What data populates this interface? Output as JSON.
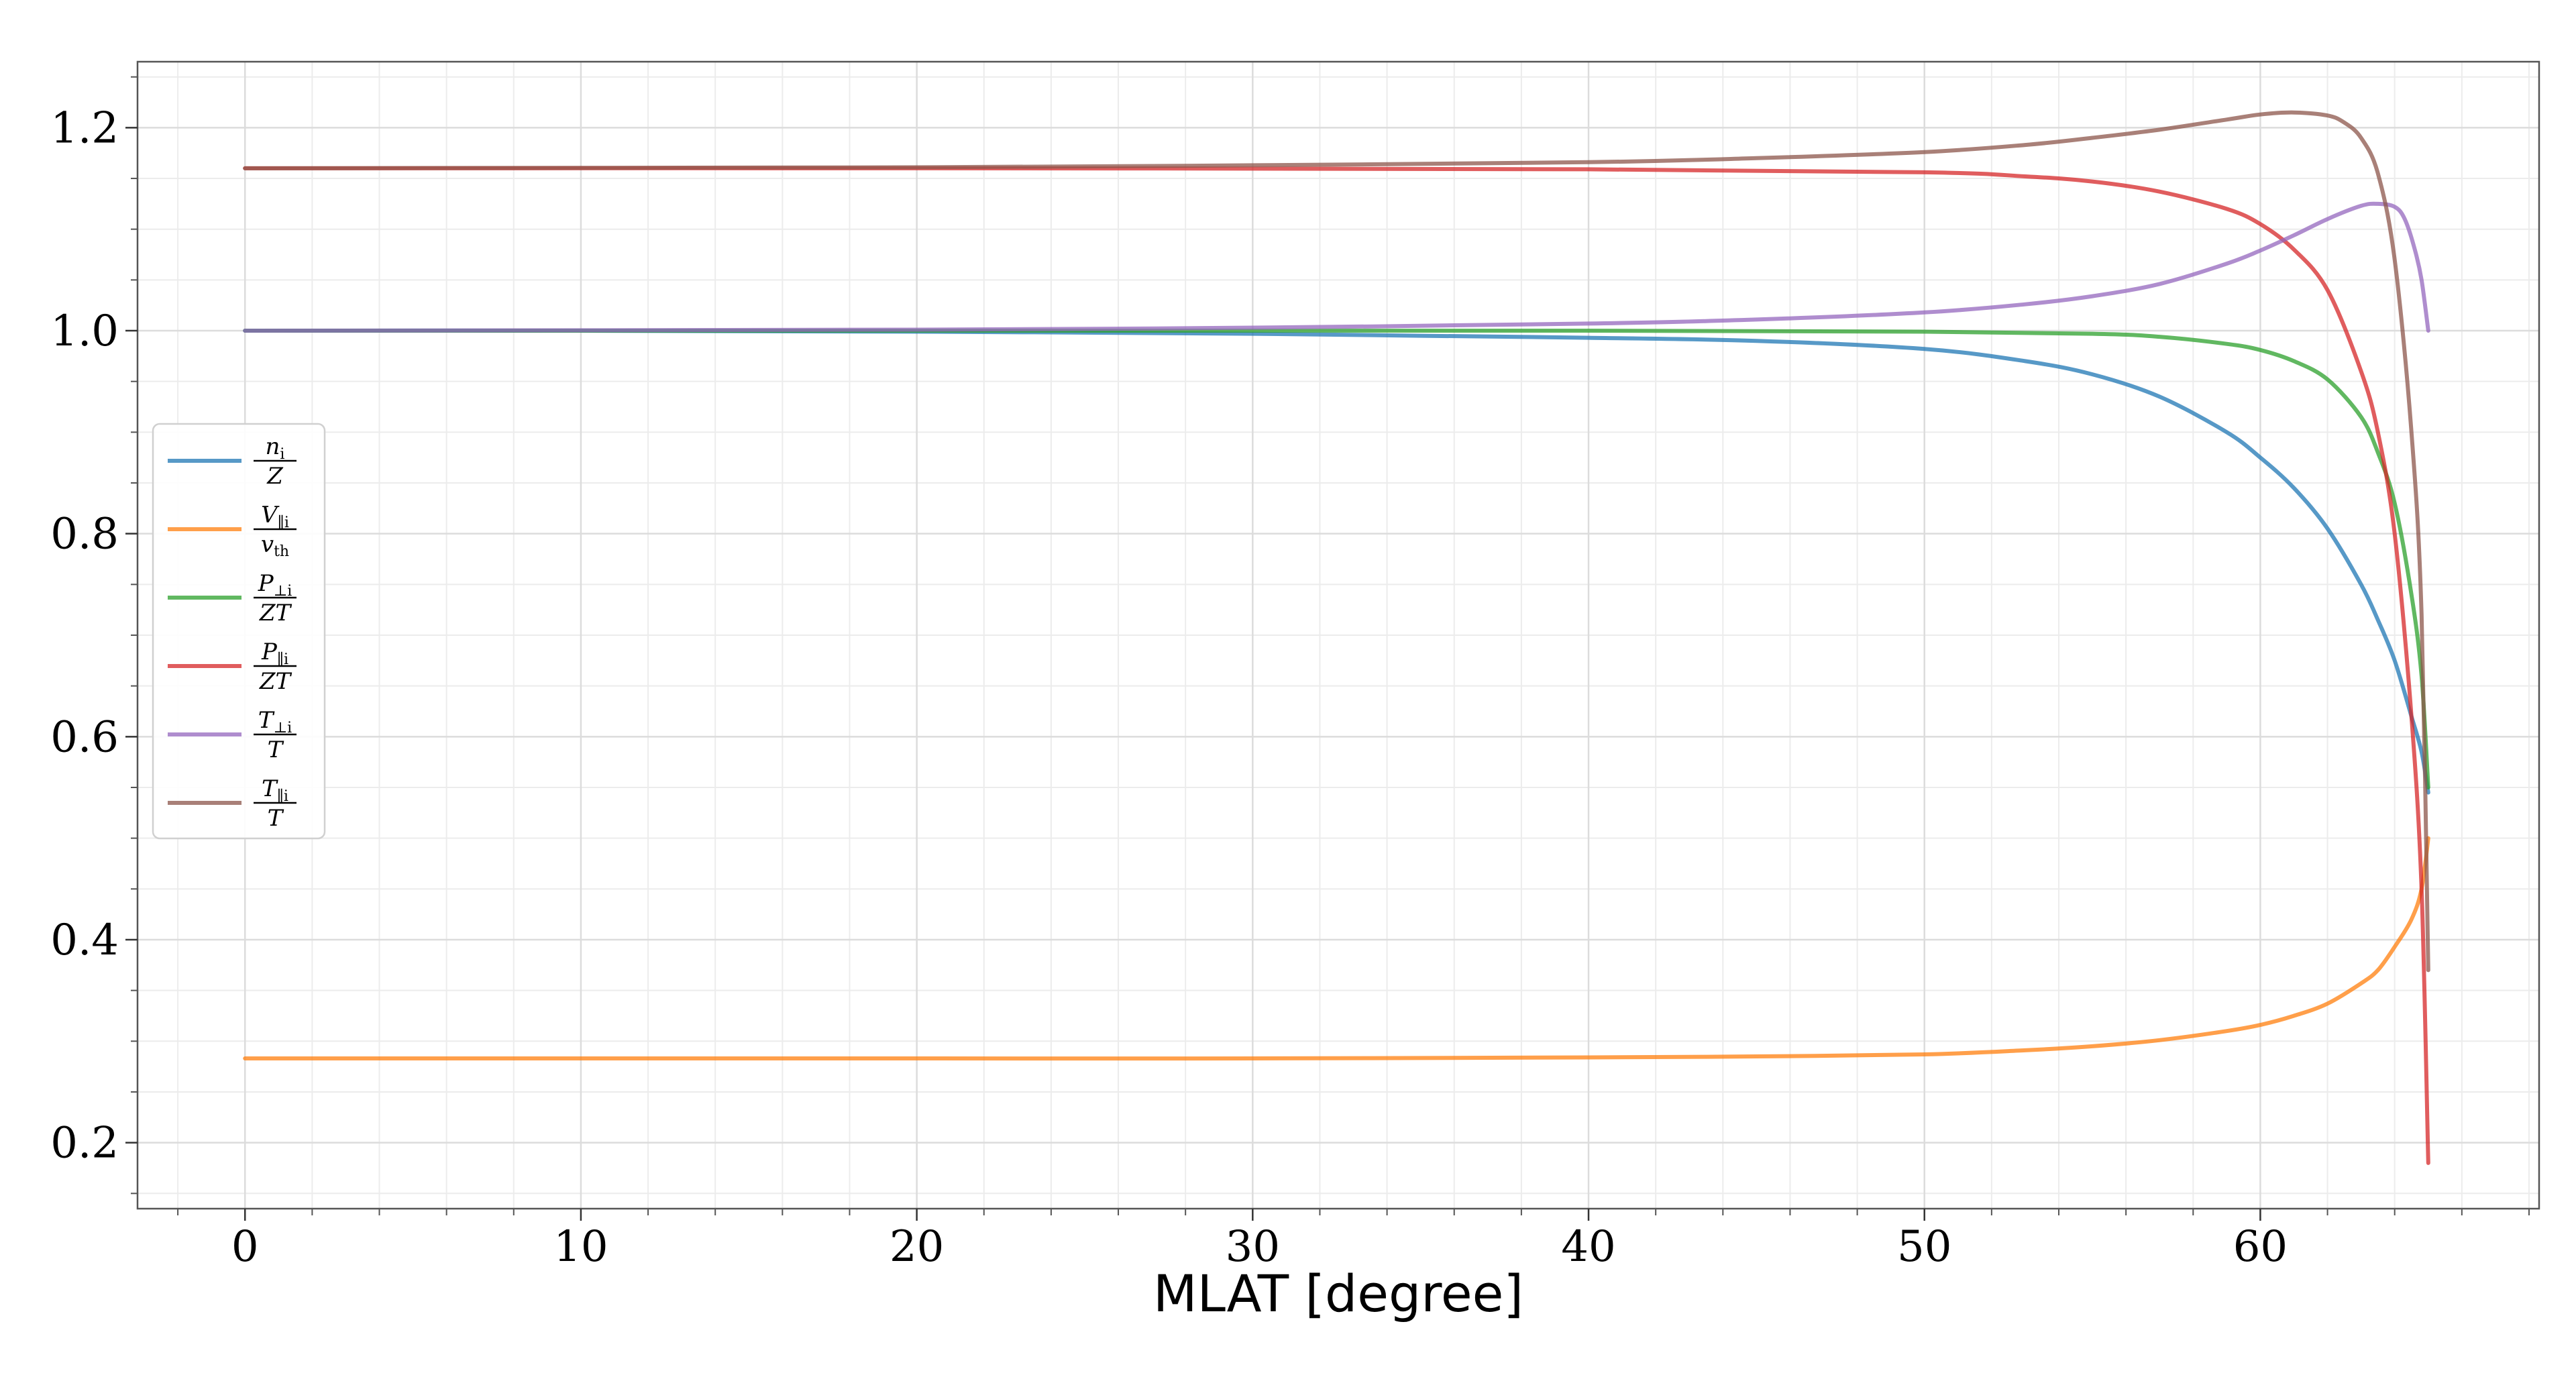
{
  "chart_data": {
    "type": "line",
    "title": "",
    "xlabel": "MLAT [degree]",
    "ylabel": "",
    "xlim": [
      -3.2,
      68.3
    ],
    "ylim": [
      0.135,
      1.265
    ],
    "xticks": [
      0,
      10,
      20,
      30,
      40,
      50,
      60
    ],
    "yticks": [
      0.2,
      0.4,
      0.6,
      0.8,
      1.0,
      1.2
    ],
    "xtick_labels": [
      "0",
      "10",
      "20",
      "30",
      "40",
      "50",
      "60"
    ],
    "ytick_labels": [
      "0.2",
      "0.4",
      "0.6",
      "0.8",
      "1.0",
      "1.2"
    ],
    "grid": true,
    "legend_placement": "center-left",
    "series": [
      {
        "name": "n_i / Z",
        "label": {
          "num": "n",
          "num_sub": "i",
          "den": "Z",
          "den_sub": ""
        },
        "color": "#1f77b4",
        "x": [
          0,
          10,
          20,
          30,
          35,
          40,
          45,
          50,
          53,
          55,
          57,
          59,
          60,
          61,
          62,
          63,
          63.5,
          64,
          64.5,
          64.8,
          65
        ],
        "y": [
          1.0,
          1.0,
          0.999,
          0.997,
          0.995,
          0.993,
          0.99,
          0.982,
          0.97,
          0.957,
          0.935,
          0.9,
          0.875,
          0.845,
          0.805,
          0.75,
          0.715,
          0.675,
          0.62,
          0.585,
          0.545
        ]
      },
      {
        "name": "V_||i / v_th",
        "label": {
          "num": "V",
          "num_sub": "∥i",
          "den": "v",
          "den_sub": "th"
        },
        "color": "#ff7f0e",
        "x": [
          0,
          10,
          20,
          30,
          40,
          45,
          50,
          53,
          55,
          57,
          59,
          60,
          61,
          62,
          63,
          63.5,
          64,
          64.5,
          64.8,
          65
        ],
        "y": [
          0.283,
          0.283,
          0.283,
          0.283,
          0.284,
          0.285,
          0.287,
          0.291,
          0.295,
          0.301,
          0.31,
          0.316,
          0.325,
          0.337,
          0.357,
          0.37,
          0.393,
          0.42,
          0.45,
          0.5
        ]
      },
      {
        "name": "P_⊥i / ZT",
        "label": {
          "num": "P",
          "num_sub": "⊥i",
          "den": "ZT",
          "den_sub": ""
        },
        "color": "#2ca02c",
        "x": [
          0,
          20,
          40,
          50,
          55,
          57,
          59,
          60,
          61,
          62,
          63,
          63.5,
          64,
          64.5,
          64.8,
          65
        ],
        "y": [
          1.0,
          1.0,
          1.0,
          0.999,
          0.997,
          0.994,
          0.987,
          0.981,
          0.97,
          0.952,
          0.915,
          0.88,
          0.83,
          0.74,
          0.66,
          0.55
        ]
      },
      {
        "name": "P_||i / ZT",
        "label": {
          "num": "P",
          "num_sub": "∥i",
          "den": "ZT",
          "den_sub": ""
        },
        "color": "#d62728",
        "x": [
          0,
          20,
          40,
          50,
          53,
          55,
          57,
          59,
          60,
          61,
          62,
          63,
          63.5,
          64,
          64.5,
          64.8,
          65
        ],
        "y": [
          1.16,
          1.16,
          1.159,
          1.156,
          1.152,
          1.147,
          1.137,
          1.12,
          1.105,
          1.08,
          1.04,
          0.96,
          0.9,
          0.8,
          0.62,
          0.45,
          0.18
        ]
      },
      {
        "name": "T_⊥i / T",
        "label": {
          "num": "T",
          "num_sub": "⊥i",
          "den": "T",
          "den_sub": ""
        },
        "color": "#9467bd",
        "x": [
          0,
          20,
          30,
          40,
          45,
          50,
          53,
          55,
          57,
          59,
          60,
          61,
          62,
          63,
          63.5,
          64,
          64.3,
          64.6,
          64.8,
          65
        ],
        "y": [
          1.0,
          1.001,
          1.003,
          1.007,
          1.011,
          1.018,
          1.026,
          1.034,
          1.046,
          1.066,
          1.079,
          1.094,
          1.11,
          1.123,
          1.125,
          1.122,
          1.11,
          1.08,
          1.05,
          1.0
        ]
      },
      {
        "name": "T_||i / T",
        "label": {
          "num": "T",
          "num_sub": "∥i",
          "den": "T",
          "den_sub": ""
        },
        "color": "#8c564b",
        "x": [
          0,
          20,
          30,
          40,
          45,
          50,
          53,
          55,
          57,
          59,
          60,
          61,
          62,
          62.5,
          63,
          63.5,
          64,
          64.5,
          64.8,
          65
        ],
        "y": [
          1.16,
          1.161,
          1.163,
          1.166,
          1.17,
          1.176,
          1.183,
          1.19,
          1.198,
          1.208,
          1.213,
          1.215,
          1.212,
          1.205,
          1.19,
          1.155,
          1.07,
          0.9,
          0.72,
          0.37
        ]
      }
    ]
  }
}
